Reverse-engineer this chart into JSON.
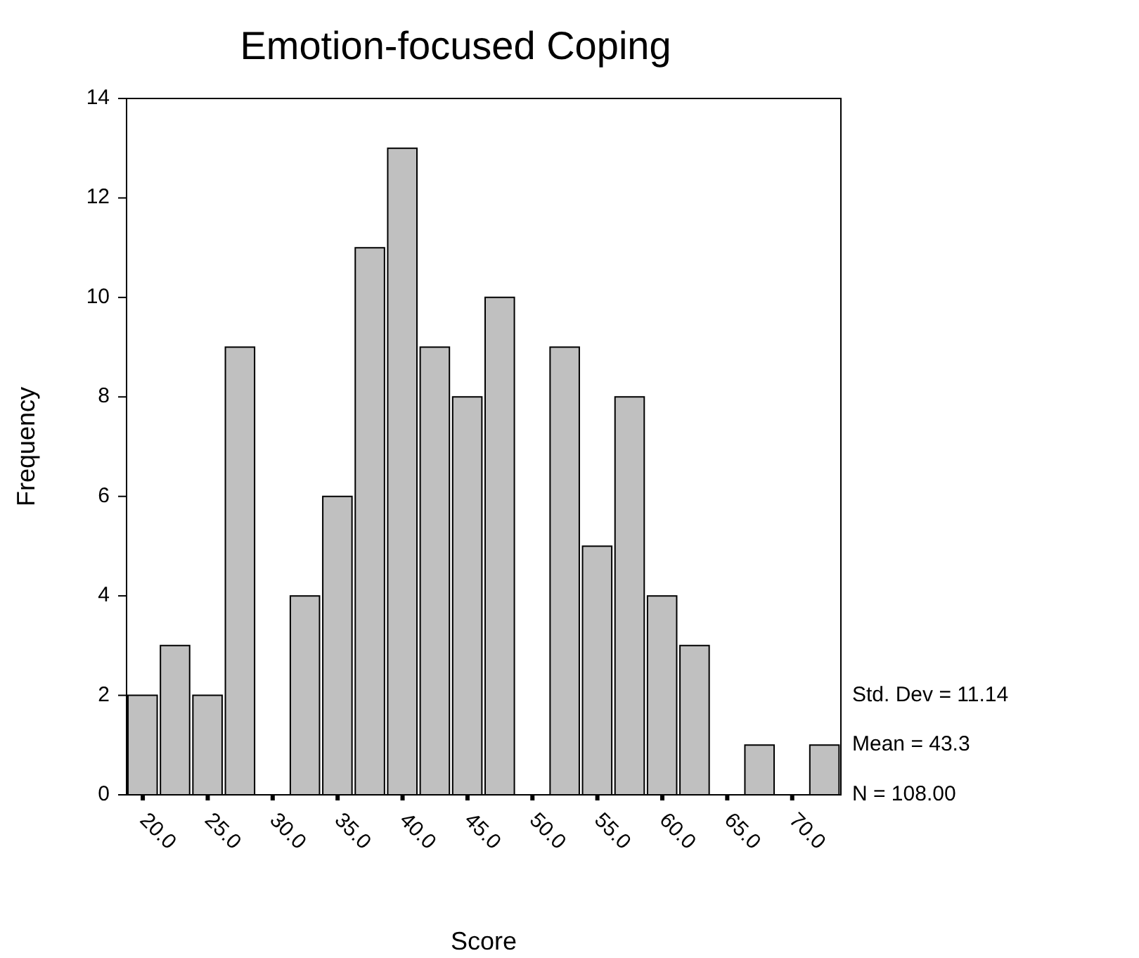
{
  "chart_data": {
    "type": "histogram",
    "title": "Emotion-focused Coping",
    "xlabel": "Score",
    "ylabel": "Frequency",
    "bins": [
      18.75,
      21.25,
      23.75,
      26.25,
      28.75,
      31.25,
      33.75,
      36.25,
      38.75,
      41.25,
      43.75,
      46.25,
      48.75,
      51.25,
      53.75,
      56.25,
      58.75,
      61.25,
      63.75,
      66.25,
      68.75,
      71.25,
      73.75
    ],
    "values": [
      2,
      3,
      2,
      9,
      0,
      4,
      6,
      11,
      13,
      9,
      8,
      10,
      0,
      9,
      5,
      8,
      4,
      3,
      0,
      1,
      0,
      1
    ],
    "color": "#c0c0c0",
    "xlim": [
      18.75,
      73.75
    ],
    "xticks": [
      {
        "value": 20,
        "label": "20.0"
      },
      {
        "value": 25,
        "label": "25.0"
      },
      {
        "value": 30,
        "label": "30.0"
      },
      {
        "value": 35,
        "label": "35.0"
      },
      {
        "value": 40,
        "label": "40.0"
      },
      {
        "value": 45,
        "label": "45.0"
      },
      {
        "value": 50,
        "label": "50.0"
      },
      {
        "value": 55,
        "label": "55.0"
      },
      {
        "value": 60,
        "label": "60.0"
      },
      {
        "value": 65,
        "label": "65.0"
      },
      {
        "value": 70,
        "label": "70.0"
      }
    ],
    "ylim": [
      0,
      14
    ],
    "yticks": [
      0,
      2,
      4,
      6,
      8,
      10,
      12,
      14
    ],
    "annotations": [
      "Std. Dev = 11.14",
      "Mean = 43.3",
      "N = 108.00"
    ]
  }
}
